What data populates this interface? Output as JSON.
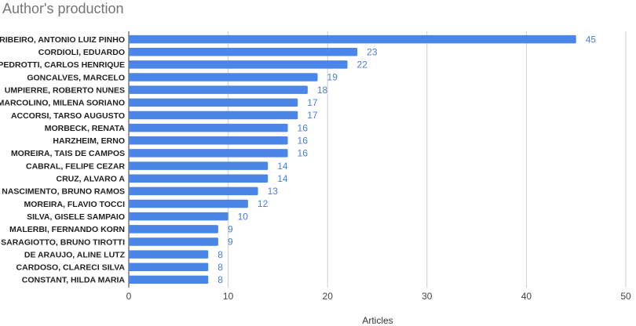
{
  "chart_data": {
    "type": "bar",
    "orientation": "horizontal",
    "title": "Author's production",
    "xlabel": "Articles",
    "ylabel": "",
    "xlim": [
      0,
      50
    ],
    "xticks": [
      0,
      10,
      20,
      30,
      40,
      50
    ],
    "grid": true,
    "bar_color": "#4a86e8",
    "label_color": "#4a7fd0",
    "categories": [
      "RIBEIRO, ANTONIO LUIZ PINHO",
      "CORDIOLI, EDUARDO",
      "PEDROTTI, CARLOS HENRIQUE",
      "GONCALVES, MARCELO",
      "UMPIERRE, ROBERTO NUNES",
      "MARCOLINO, MILENA SORIANO",
      "ACCORSI, TARSO AUGUSTO",
      "MORBECK, RENATA",
      "HARZHEIM, ERNO",
      "MOREIRA, TAIS DE CAMPOS",
      "CABRAL, FELIPE CEZAR",
      "CRUZ, ALVARO A",
      "NASCIMENTO, BRUNO RAMOS",
      "MOREIRA, FLAVIO TOCCI",
      "SILVA, GISELE SAMPAIO",
      "MALERBI, FERNANDO KORN",
      "SARAGIOTTO, BRUNO TIROTTI",
      "DE ARAUJO, ALINE LUTZ",
      "CARDOSO, CLARECI SILVA",
      "CONSTANT, HILDA MARIA"
    ],
    "values": [
      45,
      23,
      22,
      19,
      18,
      17,
      17,
      16,
      16,
      16,
      14,
      14,
      13,
      12,
      10,
      9,
      9,
      8,
      8,
      8
    ]
  }
}
